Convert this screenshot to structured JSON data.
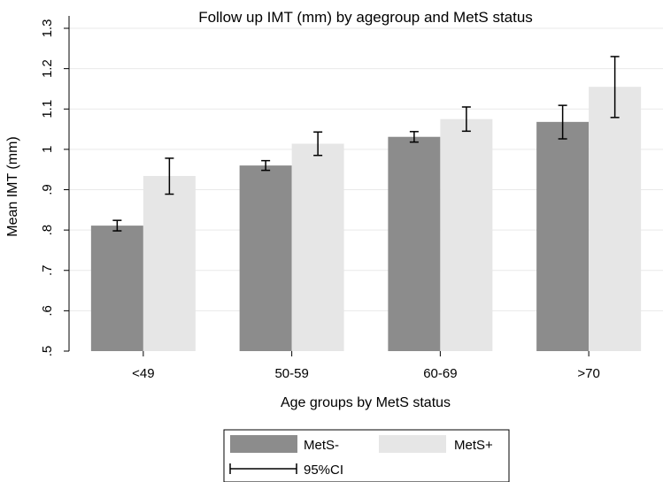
{
  "chart_data": {
    "type": "bar",
    "title": "Follow up IMT (mm) by agegroup and MetS status",
    "xlabel": "Age groups by MetS status",
    "ylabel": "Mean IMT (mm)",
    "ylim": [
      0.5,
      1.3
    ],
    "yticks": [
      0.5,
      0.6,
      0.7,
      0.8,
      0.9,
      1.0,
      1.1,
      1.2,
      1.3
    ],
    "ytick_labels": [
      ".5",
      ".6",
      ".7",
      ".8",
      ".9",
      "1",
      "1.1",
      "1.2",
      "1.3"
    ],
    "categories": [
      "<49",
      "50-59",
      "60-69",
      ">70"
    ],
    "grid": true,
    "legend_position": "bottom",
    "series": [
      {
        "name": "MetS-",
        "color": "#8c8c8c",
        "values": [
          0.811,
          0.96,
          1.031,
          1.068
        ],
        "ci_low": [
          0.798,
          0.948,
          1.018,
          1.026
        ],
        "ci_high": [
          0.824,
          0.972,
          1.044,
          1.109
        ]
      },
      {
        "name": "MetS+",
        "color": "#e6e6e6",
        "values": [
          0.934,
          1.014,
          1.075,
          1.155
        ],
        "ci_low": [
          0.889,
          0.985,
          1.045,
          1.079
        ],
        "ci_high": [
          0.978,
          1.043,
          1.105,
          1.23
        ]
      }
    ],
    "legend": {
      "items": [
        "MetS-",
        "MetS+"
      ],
      "ci_label": "95%CI"
    }
  }
}
